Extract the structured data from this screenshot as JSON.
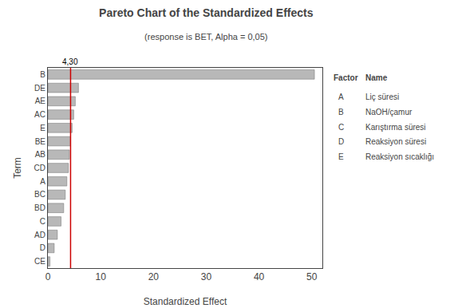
{
  "chart_data": {
    "type": "bar",
    "orientation": "horizontal",
    "title": "Pareto Chart of the Standardized Effects",
    "subtitle": "(response is BET, Alpha = 0,05)",
    "xlabel": "Standardized Effect",
    "ylabel": "Term",
    "categories": [
      "B",
      "DE",
      "AE",
      "AC",
      "E",
      "BE",
      "AB",
      "CD",
      "A",
      "BC",
      "BD",
      "C",
      "AD",
      "D",
      "CE"
    ],
    "values": [
      50.5,
      5.8,
      5.2,
      4.9,
      4.6,
      4.3,
      4.1,
      3.9,
      3.6,
      3.3,
      3.0,
      2.5,
      1.8,
      1.2,
      0.4
    ],
    "color": "#b8b8b8",
    "xlim": [
      0,
      52
    ],
    "xticks": [
      0,
      10,
      20,
      30,
      40,
      50
    ],
    "grid": false,
    "reference_lines": [
      {
        "x": 4.3,
        "label": "4,30",
        "color": "#cc0000"
      }
    ],
    "legend_table": {
      "header": [
        "Factor",
        "Name"
      ],
      "rows": [
        [
          "A",
          "Liç süresi"
        ],
        [
          "B",
          "NaOH/çamur"
        ],
        [
          "C",
          "Karıştırma süresi"
        ],
        [
          "D",
          "Reaksiyon süresi"
        ],
        [
          "E",
          "Reaksiyon sıcaklığı"
        ]
      ]
    }
  }
}
